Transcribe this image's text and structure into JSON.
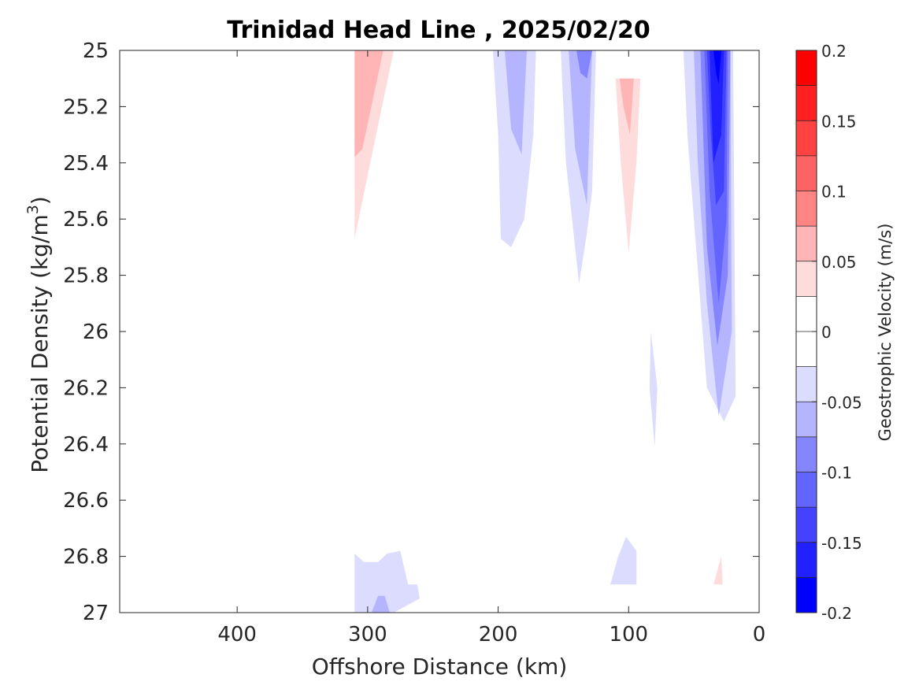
{
  "chart_data": {
    "type": "heatmap",
    "subtype": "filled-contour",
    "title": "Trinidad Head Line , 2025/02/20",
    "xlabel": "Offshore Distance (km)",
    "ylabel_main": "Potential Density (kg/m",
    "ylabel_sup": "3",
    "ylabel_close": ")",
    "x_axis": {
      "range": [
        490,
        0
      ],
      "reversed": true,
      "ticks": [
        400,
        300,
        200,
        100,
        0
      ]
    },
    "y_axis": {
      "range": [
        25,
        27
      ],
      "reversed": true,
      "ticks": [
        "25",
        "25.2",
        "25.4",
        "25.6",
        "25.8",
        "26",
        "26.2",
        "26.4",
        "26.6",
        "26.8",
        "27"
      ]
    },
    "colorbar": {
      "label": "Geostrophic Velocity (m/s)",
      "range": [
        -0.2,
        0.2
      ],
      "step": 0.025,
      "ticks": [
        "0.2",
        "0.15",
        "0.1",
        "0.05",
        "0",
        "-0.05",
        "-0.1",
        "-0.15",
        "-0.2"
      ],
      "colors_top_to_bottom": [
        "#ff0000",
        "#ff2121",
        "#ff4242",
        "#ff6464",
        "#ff8585",
        "#ffb5b5",
        "#ffdcdc",
        "#ffffff",
        "#ffffff",
        "#dcdcff",
        "#b5b5ff",
        "#8585ff",
        "#6464ff",
        "#4242ff",
        "#2121ff",
        "#0000ff"
      ]
    },
    "regions": [
      {
        "level": 0.025,
        "pts": [
          [
            310,
            25
          ],
          [
            258,
            25
          ],
          [
            262,
            25.5
          ],
          [
            264,
            26
          ],
          [
            270,
            26.2
          ],
          [
            280,
            26.34
          ],
          [
            293,
            26.32
          ],
          [
            298,
            26.2
          ],
          [
            303,
            26.07
          ],
          [
            310,
            26.06
          ]
        ]
      },
      {
        "level": 0.05,
        "pts": [
          [
            310,
            25
          ],
          [
            280,
            25
          ],
          [
            298,
            25.4
          ],
          [
            310,
            25.67
          ]
        ]
      },
      {
        "level": 0.075,
        "pts": [
          [
            310,
            25
          ],
          [
            288,
            25
          ],
          [
            304,
            25.35
          ],
          [
            310,
            25.38
          ]
        ]
      },
      {
        "level": 0.025,
        "pts": [
          [
            240,
            25
          ],
          [
            222,
            25
          ],
          [
            227,
            25.48
          ],
          [
            236,
            25.3
          ]
        ]
      },
      {
        "level": -0.025,
        "pts": [
          [
            204,
            25
          ],
          [
            171,
            25
          ],
          [
            173,
            25.3
          ],
          [
            180,
            25.6
          ],
          [
            190,
            25.7
          ],
          [
            198,
            25.67
          ],
          [
            200,
            25.3
          ]
        ]
      },
      {
        "level": -0.05,
        "pts": [
          [
            195,
            25
          ],
          [
            178,
            25
          ],
          [
            182,
            25.37
          ],
          [
            190,
            25.28
          ]
        ]
      },
      {
        "level": -0.025,
        "pts": [
          [
            152,
            25
          ],
          [
            125,
            25
          ],
          [
            128,
            25.5
          ],
          [
            132,
            25.65
          ],
          [
            138,
            25.83
          ],
          [
            148,
            25.4
          ]
        ]
      },
      {
        "level": -0.05,
        "pts": [
          [
            146,
            25
          ],
          [
            128,
            25
          ],
          [
            132,
            25.55
          ],
          [
            141,
            25.35
          ]
        ]
      },
      {
        "level": -0.075,
        "pts": [
          [
            140,
            25
          ],
          [
            128,
            25
          ],
          [
            132,
            25.1
          ],
          [
            137,
            25.08
          ]
        ]
      },
      {
        "level": 0.025,
        "pts": [
          [
            114,
            25.05
          ],
          [
            86,
            25.05
          ],
          [
            90,
            25.6
          ],
          [
            95,
            25.8
          ],
          [
            100,
            26.1
          ],
          [
            103,
            26.3
          ],
          [
            112,
            26.38
          ],
          [
            115,
            25.9
          ]
        ]
      },
      {
        "level": 0.05,
        "pts": [
          [
            110,
            25.1
          ],
          [
            91,
            25.1
          ],
          [
            94,
            25.4
          ],
          [
            100,
            25.72
          ],
          [
            106,
            25.4
          ]
        ]
      },
      {
        "level": 0.075,
        "pts": [
          [
            107,
            25.1
          ],
          [
            96,
            25.1
          ],
          [
            99,
            25.3
          ],
          [
            104,
            25.2
          ]
        ]
      },
      {
        "level": -0.025,
        "pts": [
          [
            83,
            26
          ],
          [
            78,
            26.2
          ],
          [
            80,
            26.41
          ],
          [
            84,
            26.2
          ]
        ]
      },
      {
        "level": -0.025,
        "pts": [
          [
            58,
            25
          ],
          [
            20,
            25
          ],
          [
            18,
            26.23
          ],
          [
            27,
            26.32
          ],
          [
            40,
            26.2
          ],
          [
            50,
            25.6
          ],
          [
            55,
            25.3
          ]
        ]
      },
      {
        "level": -0.05,
        "pts": [
          [
            50,
            25
          ],
          [
            22,
            25
          ],
          [
            21,
            26
          ],
          [
            31,
            26.3
          ],
          [
            40,
            25.9
          ],
          [
            47,
            25.4
          ]
        ]
      },
      {
        "level": -0.075,
        "pts": [
          [
            45,
            25
          ],
          [
            22,
            25
          ],
          [
            24,
            25.8
          ],
          [
            32,
            26.05
          ],
          [
            40,
            25.7
          ]
        ]
      },
      {
        "level": -0.1,
        "pts": [
          [
            42,
            25
          ],
          [
            24,
            25
          ],
          [
            25,
            25.6
          ],
          [
            31,
            25.9
          ],
          [
            38,
            25.5
          ]
        ]
      },
      {
        "level": -0.125,
        "pts": [
          [
            40,
            25
          ],
          [
            25,
            25
          ],
          [
            27,
            25.5
          ],
          [
            33,
            25.55
          ],
          [
            37,
            25.3
          ]
        ]
      },
      {
        "level": -0.15,
        "pts": [
          [
            38,
            25
          ],
          [
            27,
            25
          ],
          [
            29,
            25.3
          ],
          [
            35,
            25.4
          ]
        ]
      },
      {
        "level": -0.175,
        "pts": [
          [
            35,
            25
          ],
          [
            29,
            25
          ],
          [
            31,
            25.12
          ],
          [
            33,
            25.08
          ]
        ]
      },
      {
        "level": 0.025,
        "pts": [
          [
            193,
            26.33
          ],
          [
            187,
            26.6
          ],
          [
            183,
            26.78
          ],
          [
            191,
            26.73
          ],
          [
            194,
            26.5
          ]
        ]
      },
      {
        "level": 0.025,
        "pts": [
          [
            145,
            26.9
          ],
          [
            138,
            26.9
          ],
          [
            142,
            26.82
          ]
        ]
      },
      {
        "level": 0.025,
        "pts": [
          [
            48,
            26.9
          ],
          [
            23,
            26.9
          ],
          [
            25,
            26.72
          ],
          [
            30,
            26.6
          ],
          [
            40,
            26.65
          ]
        ]
      },
      {
        "level": 0.05,
        "pts": [
          [
            35,
            26.9
          ],
          [
            28,
            26.9
          ],
          [
            29,
            26.8
          ]
        ]
      },
      {
        "level": -0.025,
        "pts": [
          [
            310,
            26.79
          ],
          [
            303,
            26.82
          ],
          [
            292,
            26.82
          ],
          [
            285,
            26.79
          ],
          [
            275,
            26.78
          ],
          [
            269,
            26.9
          ],
          [
            262,
            26.9
          ],
          [
            260,
            26.95
          ],
          [
            280,
            27
          ],
          [
            310,
            27
          ]
        ]
      },
      {
        "level": -0.05,
        "pts": [
          [
            297,
            27
          ],
          [
            283,
            27
          ],
          [
            287,
            26.94
          ],
          [
            292,
            26.94
          ]
        ]
      },
      {
        "level": -0.025,
        "pts": [
          [
            114,
            26.9
          ],
          [
            94,
            26.9
          ],
          [
            94,
            26.78
          ],
          [
            102,
            26.73
          ],
          [
            108,
            26.8
          ]
        ]
      }
    ]
  }
}
